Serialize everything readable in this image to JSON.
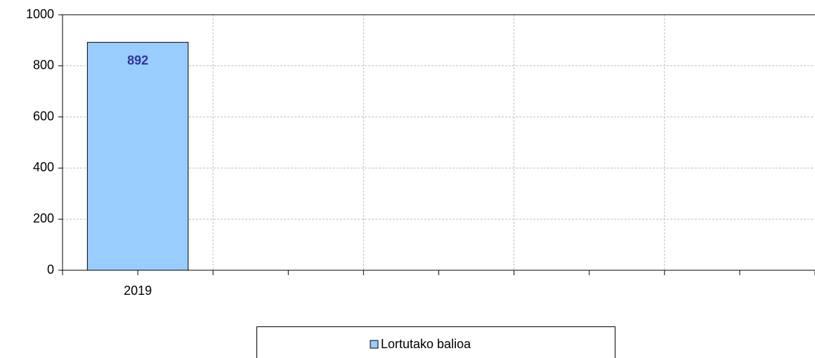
{
  "chart_data": {
    "type": "bar",
    "categories": [
      "2019",
      null,
      null,
      null,
      null
    ],
    "series": [
      {
        "name": "Lortutako balioa",
        "color": "#99ccff",
        "values": [
          892,
          null,
          null,
          null,
          null
        ]
      }
    ],
    "ylim": [
      0,
      1000
    ],
    "yticks": [
      0,
      200,
      400,
      600,
      800,
      1000
    ],
    "grid": true,
    "legend": "bottom"
  }
}
